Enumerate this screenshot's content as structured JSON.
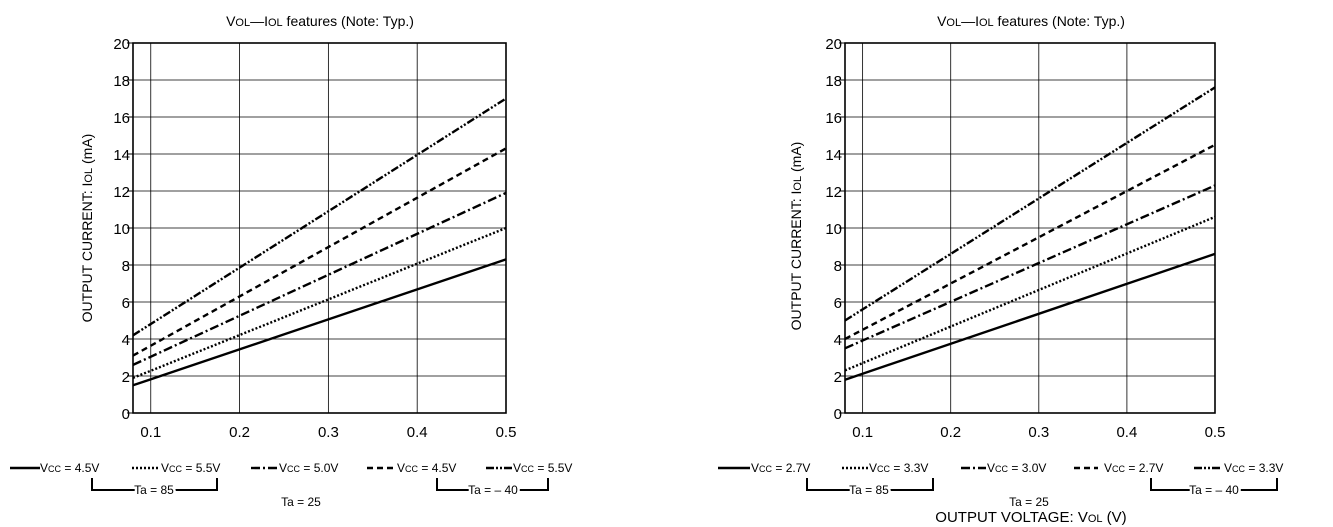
{
  "charts": [
    {
      "title_main": "V",
      "title_sub1": "OL",
      "title_dash": "—I",
      "title_sub2": "OL",
      "title_rest": " features (Note: Typ.)",
      "ylabel_main": "OUTPUT CURRENT: I",
      "ylabel_sub": "OL",
      "ylabel_unit": " (mA)",
      "xlabel_main": "",
      "xlabel_sub": "",
      "xlabel_unit": "",
      "legend": [
        {
          "pre": "V",
          "sub": "CC",
          "post": " = 4.5V"
        },
        {
          "pre": "V",
          "sub": "CC",
          "post": " = 5.5V"
        },
        {
          "pre": "V",
          "sub": "CC",
          "post": " = 5.0V"
        },
        {
          "pre": "V",
          "sub": "CC",
          "post": " = 4.5V"
        },
        {
          "pre": "V",
          "sub": "CC",
          "post": " = 5.5V"
        }
      ],
      "ta_groups": [
        "Ta = 85",
        "Ta = 25",
        "Ta = – 40"
      ]
    },
    {
      "title_main": "V",
      "title_sub1": "OL",
      "title_dash": "—I",
      "title_sub2": "OL",
      "title_rest": " features (Note:  Typ.)",
      "ylabel_main": "OUTPUT CURRENT: I",
      "ylabel_sub": "OL",
      "ylabel_unit": " (mA)",
      "xlabel_main": "OUTPUT VOLTAGE: V",
      "xlabel_sub": "OL",
      "xlabel_unit": " (V)",
      "legend": [
        {
          "pre": "V",
          "sub": "CC",
          "post": " = 2.7V"
        },
        {
          "pre": "V",
          "sub": "CC",
          "post": " = 3.3V"
        },
        {
          "pre": "V",
          "sub": "CC",
          "post": " = 3.0V"
        },
        {
          "pre": "V",
          "sub": "CC",
          "post": " = 2.7V"
        },
        {
          "pre": "V",
          "sub": "CC",
          "post": " = 3.3V"
        }
      ],
      "ta_groups": [
        "Ta = 85",
        "Ta = 25",
        "Ta = – 40"
      ]
    }
  ],
  "chart_data": [
    {
      "type": "line",
      "title": "VOL—IOL features (Note: Typ.)",
      "xlabel": "",
      "ylabel": "OUTPUT CURRENT: IOL (mA)",
      "xlim": [
        0.08,
        0.5
      ],
      "ylim": [
        0,
        20
      ],
      "xticks": [
        "0.1",
        "0.2",
        "0.3",
        "0.4",
        "0.5"
      ],
      "yticks": [
        "0",
        "2",
        "4",
        "6",
        "8",
        "10",
        "12",
        "14",
        "16",
        "18",
        "20"
      ],
      "grid": true,
      "x": [
        0.08,
        0.5
      ],
      "series": [
        {
          "name": "VCC = 4.5V, Ta = 85",
          "style": "solid",
          "values": [
            1.5,
            8.3
          ]
        },
        {
          "name": "VCC = 5.5V, Ta = 85",
          "style": "dotted",
          "values": [
            1.9,
            10.0
          ]
        },
        {
          "name": "VCC = 5.0V, Ta = 25",
          "style": "dashdot",
          "values": [
            2.6,
            11.9
          ]
        },
        {
          "name": "VCC = 4.5V, Ta = -40",
          "style": "dashed",
          "values": [
            3.1,
            14.3
          ]
        },
        {
          "name": "VCC = 5.5V, Ta = -40",
          "style": "dashdotdot",
          "values": [
            4.2,
            17.0
          ]
        }
      ]
    },
    {
      "type": "line",
      "title": "VOL—IOL features (Note:  Typ.)",
      "xlabel": "OUTPUT VOLTAGE: VOL (V)",
      "ylabel": "OUTPUT CURRENT: IOL (mA)",
      "xlim": [
        0.08,
        0.5
      ],
      "ylim": [
        0,
        20
      ],
      "xticks": [
        "0.1",
        "0.2",
        "0.3",
        "0.4",
        "0.5"
      ],
      "yticks": [
        "0",
        "2",
        "4",
        "6",
        "8",
        "10",
        "12",
        "14",
        "16",
        "18",
        "20"
      ],
      "grid": true,
      "x": [
        0.08,
        0.5
      ],
      "series": [
        {
          "name": "VCC = 2.7V, Ta = 85",
          "style": "solid",
          "values": [
            1.8,
            8.6
          ]
        },
        {
          "name": "VCC = 3.3V, Ta = 85",
          "style": "dotted",
          "values": [
            2.3,
            10.6
          ]
        },
        {
          "name": "VCC = 3.0V, Ta = 25",
          "style": "dashdot",
          "values": [
            3.5,
            12.3
          ]
        },
        {
          "name": "VCC = 2.7V, Ta = -40",
          "style": "dashed",
          "values": [
            4.0,
            14.5
          ]
        },
        {
          "name": "VCC = 3.3V, Ta = -40",
          "style": "dashdotdot",
          "values": [
            5.0,
            17.6
          ]
        }
      ]
    }
  ]
}
